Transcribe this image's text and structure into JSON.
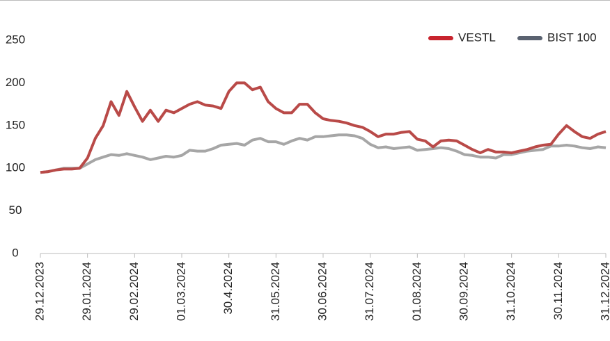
{
  "chart_data": {
    "type": "line",
    "categories": [
      "29.12.2023",
      null,
      null,
      null,
      null,
      null,
      "29.01.2024",
      null,
      null,
      null,
      null,
      null,
      "29.02.2024",
      null,
      null,
      null,
      null,
      null,
      "01.03.2024",
      null,
      null,
      null,
      null,
      null,
      "30.4.2024",
      null,
      null,
      null,
      null,
      null,
      "31.05.2024",
      null,
      null,
      null,
      null,
      null,
      "30.06.2024",
      null,
      null,
      null,
      null,
      null,
      "31.07.2024",
      null,
      null,
      null,
      null,
      null,
      "01.08.2024",
      null,
      null,
      null,
      null,
      null,
      "30.09.2024",
      null,
      null,
      null,
      null,
      null,
      "31.10.2024",
      null,
      null,
      null,
      null,
      null,
      "30.11.2024",
      null,
      null,
      null,
      null,
      null,
      "31.12.2024"
    ],
    "series": [
      {
        "name": "VESTL",
        "color": "#b94a48",
        "legend_color": "#c8242e",
        "values": [
          95,
          96,
          98,
          99,
          99,
          100,
          112,
          135,
          150,
          178,
          162,
          190,
          172,
          155,
          168,
          155,
          168,
          165,
          170,
          175,
          178,
          174,
          173,
          170,
          190,
          200,
          200,
          192,
          195,
          178,
          170,
          165,
          165,
          175,
          175,
          165,
          158,
          156,
          155,
          153,
          150,
          148,
          143,
          137,
          140,
          140,
          142,
          143,
          134,
          132,
          125,
          132,
          133,
          132,
          127,
          122,
          118,
          122,
          119,
          119,
          118,
          120,
          122,
          125,
          127,
          128,
          140,
          150,
          143,
          137,
          135,
          140,
          143
        ]
      },
      {
        "name": "BIST 100",
        "color": "#a6a6a6",
        "legend_color": "#5a6270",
        "values": [
          95,
          96,
          98,
          100,
          100,
          100,
          105,
          110,
          113,
          116,
          115,
          117,
          115,
          113,
          110,
          112,
          114,
          113,
          115,
          121,
          120,
          120,
          123,
          127,
          128,
          129,
          127,
          133,
          135,
          131,
          131,
          128,
          132,
          135,
          133,
          137,
          137,
          138,
          139,
          139,
          138,
          135,
          128,
          124,
          125,
          123,
          124,
          125,
          121,
          122,
          123,
          124,
          123,
          120,
          116,
          115,
          113,
          113,
          112,
          116,
          116,
          118,
          120,
          121,
          122,
          126,
          126,
          127,
          126,
          124,
          123,
          125,
          124
        ]
      }
    ],
    "ylim": [
      0,
      250
    ],
    "yticks": [
      0,
      50,
      100,
      150,
      200,
      250
    ],
    "grid": false,
    "legend": "top-right"
  }
}
